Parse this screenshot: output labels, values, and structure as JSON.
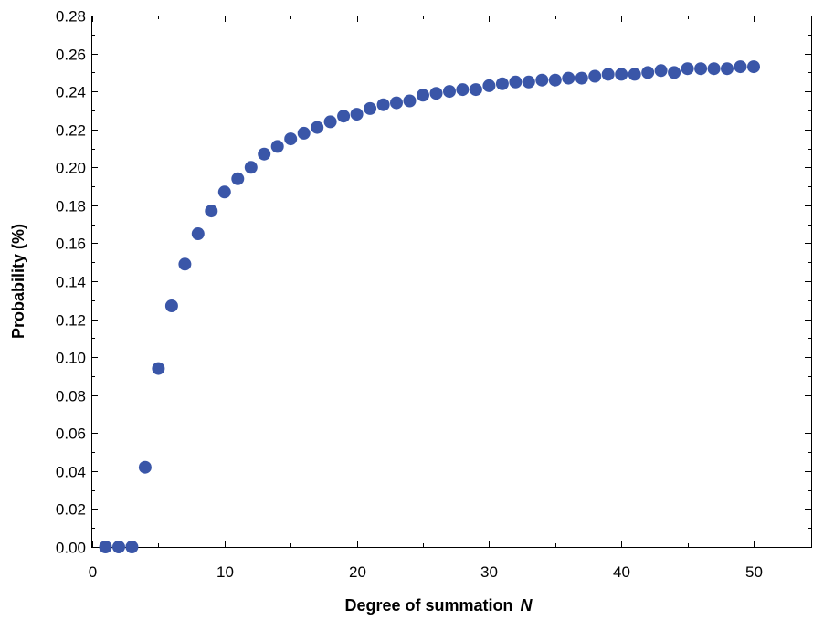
{
  "chart_data": {
    "type": "scatter",
    "xlabel": "Degree of summation",
    "xlabel_var": "N",
    "ylabel": "Probability (%)",
    "xlim": [
      0,
      55
    ],
    "ylim": [
      0,
      0.28
    ],
    "x_ticks": [
      0,
      10,
      20,
      30,
      40,
      50
    ],
    "x_tick_labels": [
      "0",
      "10",
      "20",
      "30",
      "40",
      "50"
    ],
    "y_ticks": [
      0,
      0.02,
      0.04,
      0.06,
      0.08,
      0.1,
      0.12,
      0.14,
      0.16,
      0.18,
      0.2,
      0.22,
      0.24,
      0.26,
      0.28
    ],
    "y_tick_labels": [
      "0.00",
      "0.02",
      "0.04",
      "0.06",
      "0.08",
      "0.10",
      "0.12",
      "0.14",
      "0.16",
      "0.18",
      "0.20",
      "0.22",
      "0.24",
      "0.26",
      "0.28"
    ],
    "grid": false,
    "marker_color": "#3a56a8",
    "series": [
      {
        "x": [
          1,
          2,
          3,
          4,
          5,
          6,
          7,
          8,
          9,
          10,
          11,
          12,
          13,
          14,
          15,
          16,
          17,
          18,
          19,
          20,
          21,
          22,
          23,
          24,
          25,
          26,
          27,
          28,
          29,
          30,
          31,
          32,
          33,
          34,
          35,
          36,
          37,
          38,
          39,
          40,
          41,
          42,
          43,
          44,
          45,
          46,
          47,
          48,
          49,
          50
        ],
        "y": [
          0.0,
          0.0,
          0.0,
          0.042,
          0.094,
          0.127,
          0.149,
          0.165,
          0.177,
          0.187,
          0.194,
          0.2,
          0.207,
          0.211,
          0.215,
          0.218,
          0.221,
          0.224,
          0.227,
          0.228,
          0.231,
          0.233,
          0.234,
          0.235,
          0.238,
          0.239,
          0.24,
          0.241,
          0.241,
          0.243,
          0.244,
          0.245,
          0.245,
          0.246,
          0.246,
          0.247,
          0.247,
          0.248,
          0.249,
          0.249,
          0.249,
          0.25,
          0.251,
          0.25,
          0.252,
          0.252,
          0.252,
          0.252,
          0.253,
          0.253
        ]
      }
    ]
  }
}
